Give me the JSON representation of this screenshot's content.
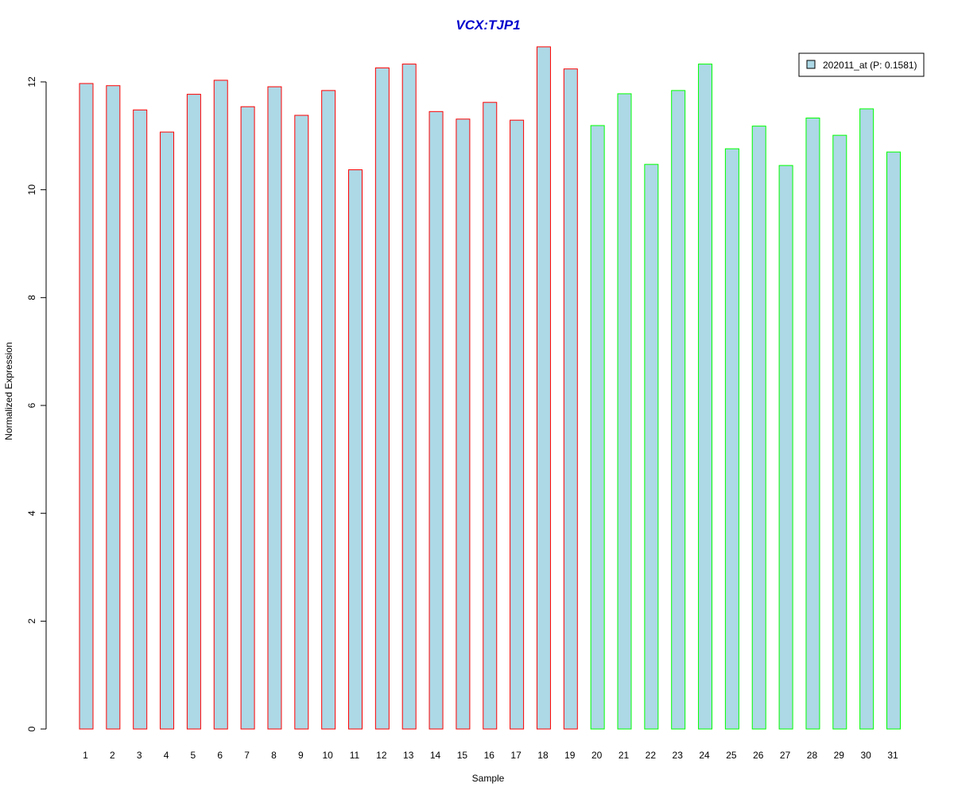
{
  "chart_data": {
    "type": "bar",
    "title": "VCX:TJP1",
    "xlabel": "Sample",
    "ylabel": "Normalized Expression",
    "ylim": [
      0,
      12.7
    ],
    "yticks": [
      0,
      2,
      4,
      6,
      8,
      10,
      12
    ],
    "categories": [
      "1",
      "2",
      "3",
      "4",
      "5",
      "6",
      "7",
      "8",
      "9",
      "10",
      "11",
      "12",
      "13",
      "14",
      "15",
      "16",
      "17",
      "18",
      "19",
      "20",
      "21",
      "22",
      "23",
      "24",
      "25",
      "26",
      "27",
      "28",
      "29",
      "30",
      "31"
    ],
    "series": [
      {
        "name": "202011_at (P: 0.1581)",
        "values": [
          11.97,
          11.93,
          11.48,
          11.07,
          11.77,
          12.03,
          11.54,
          11.91,
          11.38,
          11.84,
          10.37,
          12.26,
          12.33,
          11.45,
          11.31,
          11.62,
          11.29,
          12.65,
          12.24,
          11.19,
          11.78,
          10.47,
          11.84,
          12.33,
          10.76,
          11.18,
          10.45,
          11.33,
          11.01,
          11.5,
          10.7
        ],
        "fill": "#add8e6"
      }
    ],
    "groups": [
      {
        "samples": [
          1,
          19
        ],
        "border_color": "#ff0000"
      },
      {
        "samples": [
          20,
          31
        ],
        "border_color": "#00ff00"
      }
    ],
    "legend_position": "top-right",
    "grid": false,
    "colors": {
      "title": "#0000cd",
      "bar_fill": "#add8e6",
      "axis": "#000000"
    }
  }
}
